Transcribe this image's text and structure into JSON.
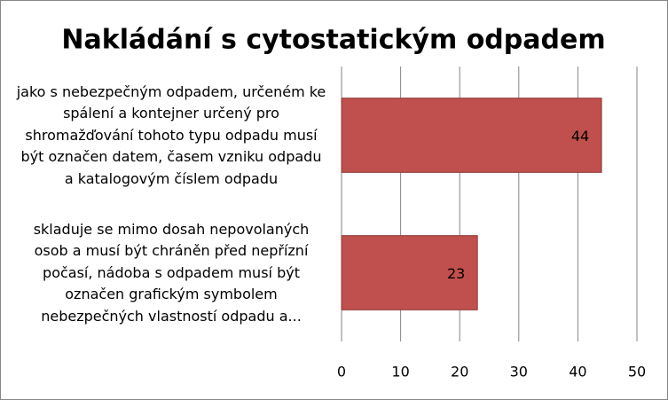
{
  "chart_data": {
    "type": "bar",
    "orientation": "horizontal",
    "title": "Nakládání s cytostatickým odpadem",
    "categories": [
      "jako s nebezpečným odpadem, určeném ke spálení a kontejner určený pro shromažďování tohoto typu odpadu musí být označen datem, časem vzniku odpadu a katalogovým číslem odpadu",
      "skladuje se mimo dosah nepovolaných osob a musí být chráněn před nepřízní počasí, nádoba s odpadem musí být označen grafickým symbolem nebezpečných vlastností odpadu a..."
    ],
    "values": [
      44,
      23
    ],
    "color": "#c0504d",
    "xlim": [
      0,
      50
    ],
    "xticks": [
      0,
      10,
      20,
      30,
      40,
      50
    ],
    "grid": true
  }
}
